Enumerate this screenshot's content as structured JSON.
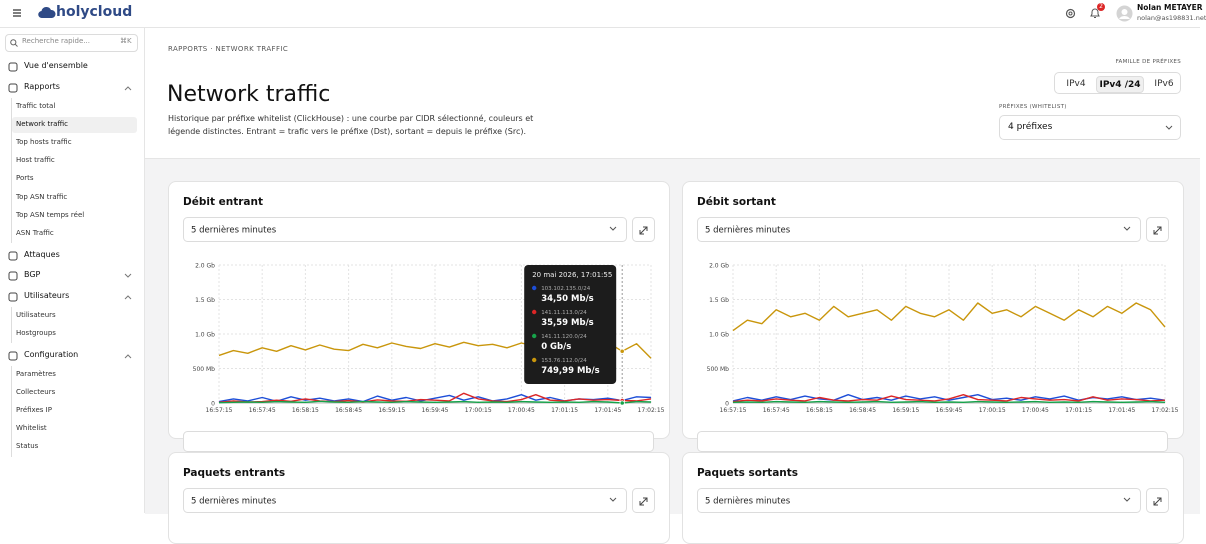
{
  "topbar": {
    "brand": "holycloud",
    "notifications": "2",
    "user_name": "Nolan METAYER",
    "user_email": "nolan@as198831.net"
  },
  "sidebar": {
    "search_placeholder": "Recherche rapide...",
    "shortcut": "⌘K",
    "sections": [
      {
        "label": "Vue d'ensemble"
      },
      {
        "label": "Rapports",
        "items": [
          "Traffic total",
          "Network traffic",
          "Top hosts traffic",
          "Host traffic",
          "Ports",
          "Top ASN traffic",
          "Top ASN temps réel",
          "ASN Traffic"
        ]
      },
      {
        "label": "Attaques"
      },
      {
        "label": "BGP",
        "items": []
      },
      {
        "label": "Utilisateurs",
        "items": [
          "Utilisateurs",
          "Hostgroups"
        ]
      },
      {
        "label": "Configuration",
        "items": [
          "Paramètres",
          "Collecteurs",
          "Préfixes IP",
          "Whitelist",
          "Status"
        ]
      }
    ]
  },
  "header": {
    "breadcrumb": "RAPPORTS · NETWORK TRAFFIC",
    "title": "Network traffic",
    "description": "Historique par préfixe whitelist (ClickHouse) : une courbe par CIDR sélectionné, couleurs et légende distinctes. Entrant = trafic vers le préfixe (Dst), sortant = depuis le préfixe (Src).",
    "family_label": "FAMILLE DE PRÉFIXES",
    "families": [
      "IPv4",
      "IPv4 /24",
      "IPv6"
    ],
    "prefixes_label": "PRÉFIXES (WHITELIST)",
    "prefixes_value": "4 préfixes"
  },
  "chart_data": [
    {
      "type": "line",
      "title": "Débit entrant",
      "period": "5 dernières minutes",
      "categories": [
        "16:57:15",
        null,
        null,
        "16:57:45",
        null,
        null,
        "16:58:15",
        null,
        null,
        "16:58:45",
        null,
        null,
        "16:59:15",
        null,
        null,
        "16:59:45",
        null,
        null,
        "17:00:15",
        null,
        null,
        "17:00:45",
        null,
        null,
        "17:01:15",
        null,
        null,
        "17:01:45",
        null,
        null,
        "17:02:15"
      ],
      "ylim": [
        0,
        2000
      ],
      "yticks": [
        0,
        {
          "value": 500,
          "label": "500 Mb"
        },
        {
          "value": 1000,
          "label": "1.0 Gb"
        },
        {
          "value": 1500,
          "label": "1.5 Gb"
        },
        {
          "value": 2000,
          "label": "2.0 Gb"
        }
      ],
      "grid": true,
      "series": [
        {
          "name": "103.102.135.0/24",
          "color": "#1d4ed8",
          "values": [
            20,
            60,
            30,
            80,
            25,
            90,
            40,
            70,
            30,
            60,
            20,
            100,
            40,
            80,
            30,
            70,
            110,
            40,
            90,
            30,
            60,
            120,
            40,
            80,
            30,
            60,
            50,
            70,
            34.5,
            90,
            80
          ]
        },
        {
          "name": "141.11.113.0/24",
          "color": "#dc2626",
          "values": [
            10,
            30,
            15,
            20,
            40,
            25,
            60,
            30,
            20,
            35,
            15,
            45,
            30,
            25,
            50,
            40,
            30,
            140,
            60,
            30,
            20,
            50,
            120,
            40,
            30,
            60,
            40,
            50,
            35.59,
            30,
            60
          ]
        },
        {
          "name": "141.11.120.0/24",
          "color": "#16a34a",
          "values": [
            5,
            10,
            15,
            10,
            20,
            15,
            10,
            25,
            15,
            10,
            20,
            15,
            10,
            20,
            15,
            10,
            15,
            20,
            10,
            15,
            10,
            20,
            15,
            10,
            15,
            10,
            20,
            15,
            0,
            20,
            15
          ]
        },
        {
          "name": "153.76.112.0/24",
          "color": "#c9960c",
          "values": [
            690,
            760,
            720,
            800,
            750,
            830,
            770,
            840,
            780,
            760,
            850,
            800,
            870,
            820,
            790,
            860,
            810,
            880,
            830,
            850,
            800,
            870,
            820,
            780,
            850,
            820,
            790,
            880,
            749.99,
            860,
            650
          ]
        }
      ],
      "tooltip": {
        "title": "20 mai 2026, 17:01:55",
        "values": [
          34.5,
          35.59,
          0,
          749.99
        ],
        "value_labels": [
          "34,50 Mb/s",
          "35,59 Mb/s",
          "0 Gb/s",
          "749,99 Mb/s"
        ]
      }
    },
    {
      "type": "line",
      "title": "Débit sortant",
      "period": "5 dernières minutes",
      "categories": [
        "16:57:15",
        null,
        null,
        "16:57:45",
        null,
        null,
        "16:58:15",
        null,
        null,
        "16:58:45",
        null,
        null,
        "16:59:15",
        null,
        null,
        "16:59:45",
        null,
        null,
        "17:00:15",
        null,
        null,
        "17:00:45",
        null,
        null,
        "17:01:15",
        null,
        null,
        "17:01:45",
        null,
        null,
        "17:02:15"
      ],
      "ylim": [
        0,
        2000
      ],
      "yticks": [
        0,
        {
          "value": 500,
          "label": "500 Mb"
        },
        {
          "value": 1000,
          "label": "1.0 Gb"
        },
        {
          "value": 1500,
          "label": "1.5 Gb"
        },
        {
          "value": 2000,
          "label": "2.0 Gb"
        }
      ],
      "grid": true,
      "series": [
        {
          "color": "#1d4ed8",
          "values": [
            30,
            80,
            40,
            90,
            50,
            100,
            60,
            40,
            120,
            50,
            80,
            40,
            100,
            60,
            90,
            40,
            80,
            120,
            50,
            70,
            40,
            90,
            60,
            100,
            40,
            80,
            60,
            90,
            50,
            70,
            40
          ]
        },
        {
          "color": "#dc2626",
          "values": [
            20,
            40,
            30,
            60,
            40,
            30,
            80,
            40,
            30,
            50,
            40,
            100,
            50,
            40,
            30,
            60,
            120,
            50,
            40,
            30,
            80,
            60,
            40,
            50,
            30,
            90,
            40,
            60,
            50,
            30,
            40
          ]
        },
        {
          "color": "#16a34a",
          "values": [
            10,
            15,
            10,
            20,
            15,
            10,
            20,
            15,
            10,
            15,
            20,
            10,
            15,
            20,
            10,
            15,
            10,
            20,
            15,
            10,
            15,
            20,
            10,
            15,
            10,
            20,
            15,
            10,
            15,
            20,
            10
          ]
        },
        {
          "color": "#c9960c",
          "values": [
            1050,
            1200,
            1150,
            1350,
            1250,
            1300,
            1200,
            1400,
            1250,
            1300,
            1350,
            1200,
            1400,
            1300,
            1250,
            1350,
            1200,
            1450,
            1300,
            1350,
            1250,
            1400,
            1300,
            1200,
            1350,
            1250,
            1400,
            1300,
            1450,
            1350,
            1100
          ]
        }
      ]
    }
  ],
  "more_cards": [
    {
      "title": "Paquets entrants",
      "period": "5 dernières minutes"
    },
    {
      "title": "Paquets sortants",
      "period": "5 dernières minutes"
    }
  ]
}
